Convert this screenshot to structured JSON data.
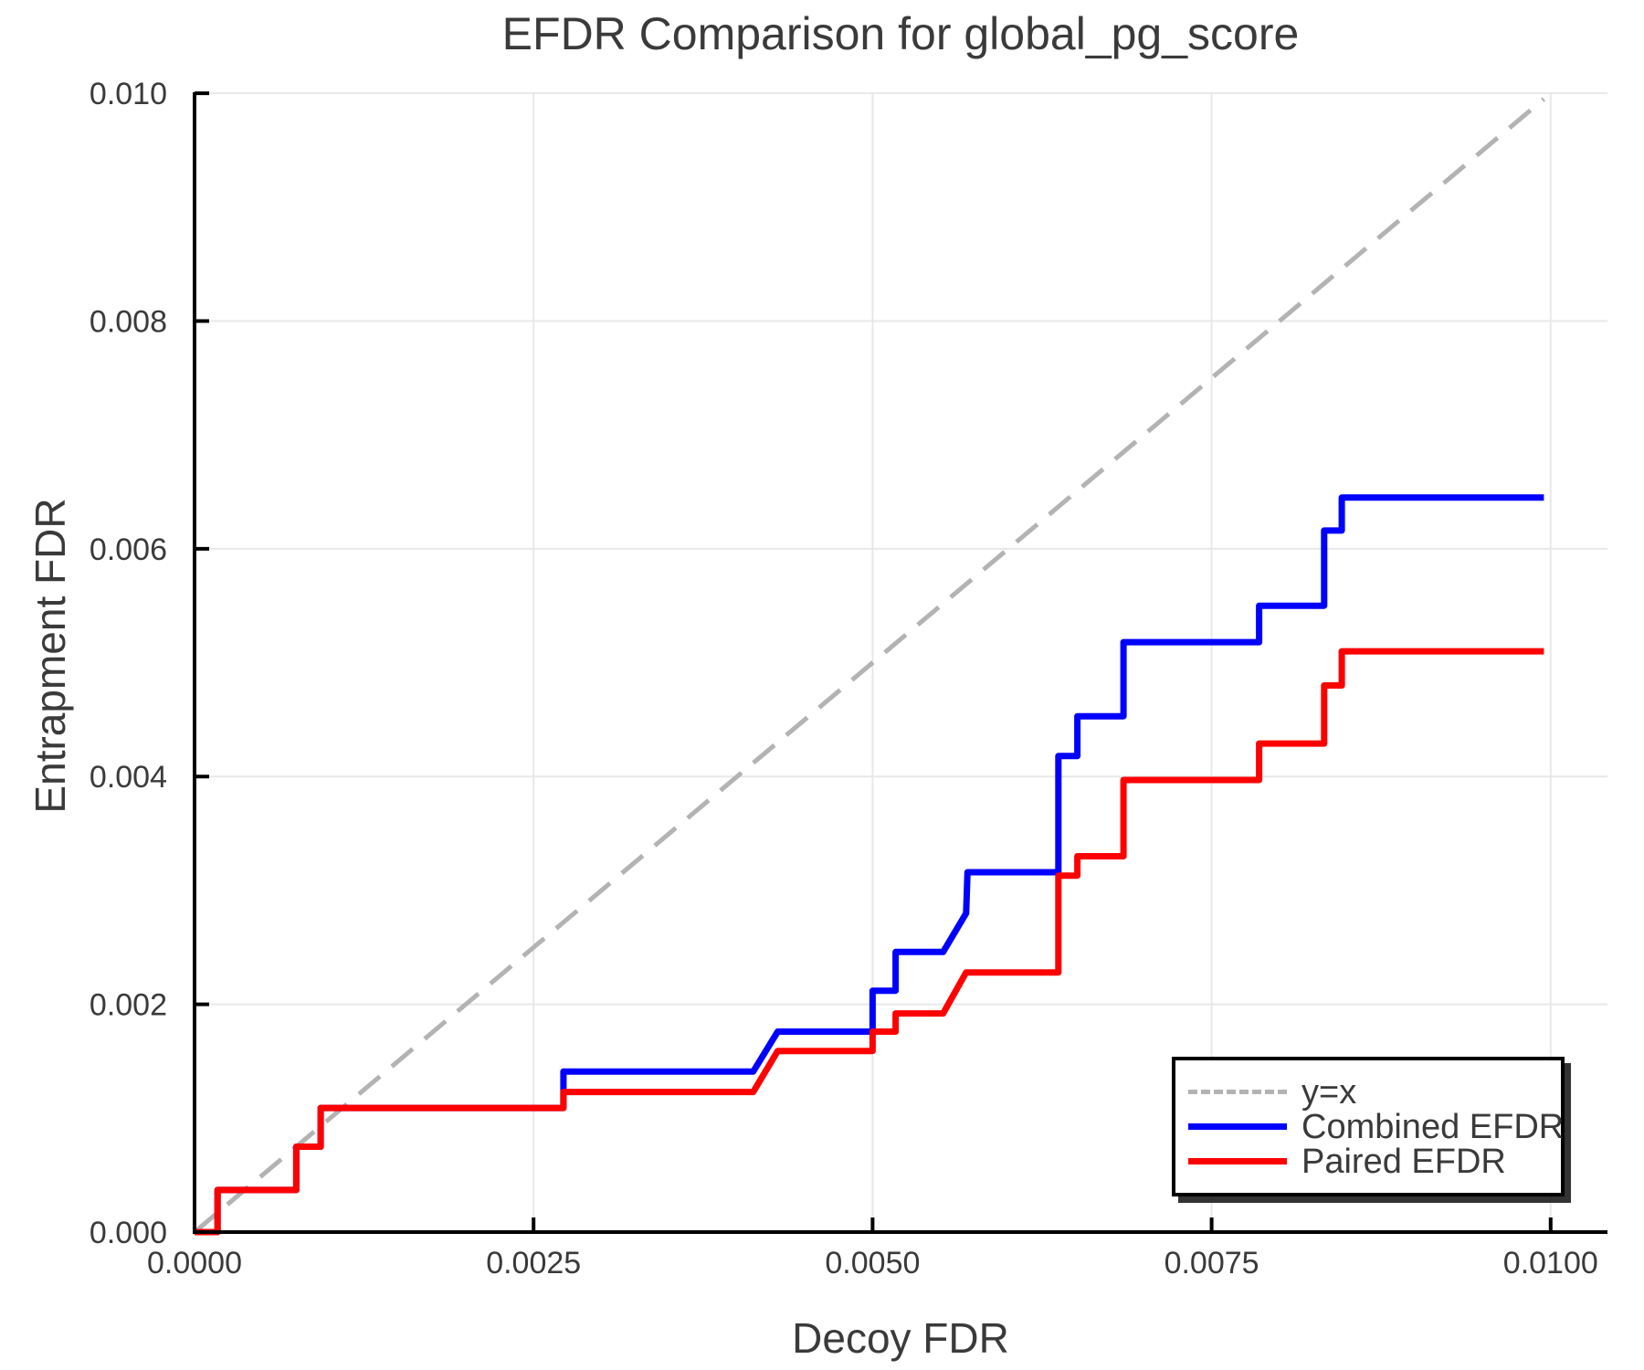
{
  "chart_data": {
    "type": "line",
    "title": "EFDR Comparison for global_pg_score",
    "xlabel": "Decoy FDR",
    "ylabel": "Entrapment FDR",
    "xlim": [
      0,
      0.010419
    ],
    "ylim": [
      0,
      0.010009
    ],
    "xticks": [
      0.0,
      0.0025,
      0.005,
      0.0075,
      0.01
    ],
    "xtick_labels": [
      "0.0000",
      "0.0025",
      "0.0050",
      "0.0075",
      "0.0100"
    ],
    "yticks": [
      0.0,
      0.002,
      0.004,
      0.006,
      0.008,
      0.01
    ],
    "ytick_labels": [
      "0.000",
      "0.002",
      "0.004",
      "0.006",
      "0.008",
      "0.010"
    ],
    "grid": true,
    "legend_position": "lower right",
    "background_color": "#ffffff",
    "text_color": "#3a3a3a",
    "grid_color": "#e8e8e8",
    "spine_color": "#000000",
    "series": [
      {
        "name": "y=x",
        "color": "#b3b3b3",
        "style": "dashed",
        "points": [
          [
            0,
            0
          ],
          [
            0.00995,
            0.00995
          ]
        ]
      },
      {
        "name": "Combined EFDR",
        "color": "#0000ff",
        "style": "solid",
        "points": [
          [
            0.0,
            0.0
          ],
          [
            0.00017,
            0.0
          ],
          [
            0.00017,
            0.00037
          ],
          [
            0.00075,
            0.00037
          ],
          [
            0.00075,
            0.00075
          ],
          [
            0.00093,
            0.00075
          ],
          [
            0.00093,
            0.00109
          ],
          [
            0.00272,
            0.00109
          ],
          [
            0.00272,
            0.00141
          ],
          [
            0.00412,
            0.00141
          ],
          [
            0.0043,
            0.00176
          ],
          [
            0.005,
            0.00176
          ],
          [
            0.005,
            0.00212
          ],
          [
            0.00517,
            0.00212
          ],
          [
            0.00517,
            0.00246
          ],
          [
            0.00552,
            0.00246
          ],
          [
            0.00569,
            0.0028
          ],
          [
            0.0057,
            0.00316
          ],
          [
            0.00637,
            0.00316
          ],
          [
            0.00637,
            0.00418
          ],
          [
            0.00651,
            0.00418
          ],
          [
            0.00651,
            0.00453
          ],
          [
            0.00685,
            0.00453
          ],
          [
            0.00685,
            0.00518
          ],
          [
            0.00785,
            0.00518
          ],
          [
            0.00785,
            0.0055
          ],
          [
            0.00833,
            0.0055
          ],
          [
            0.00833,
            0.00616
          ],
          [
            0.00846,
            0.00616
          ],
          [
            0.00846,
            0.00645
          ],
          [
            0.00995,
            0.00645
          ]
        ]
      },
      {
        "name": "Paired EFDR",
        "color": "#ff0000",
        "style": "solid",
        "points": [
          [
            0.0,
            0.0
          ],
          [
            0.00017,
            0.0
          ],
          [
            0.00017,
            0.00037
          ],
          [
            0.00075,
            0.00037
          ],
          [
            0.00075,
            0.00075
          ],
          [
            0.00093,
            0.00075
          ],
          [
            0.00093,
            0.00109
          ],
          [
            0.00272,
            0.00109
          ],
          [
            0.00272,
            0.00123
          ],
          [
            0.00412,
            0.00123
          ],
          [
            0.0043,
            0.00159
          ],
          [
            0.005,
            0.00159
          ],
          [
            0.005,
            0.00176
          ],
          [
            0.00517,
            0.00176
          ],
          [
            0.00517,
            0.00192
          ],
          [
            0.00552,
            0.00192
          ],
          [
            0.00569,
            0.00228
          ],
          [
            0.00637,
            0.00228
          ],
          [
            0.00637,
            0.00313
          ],
          [
            0.00651,
            0.00313
          ],
          [
            0.00651,
            0.0033
          ],
          [
            0.00685,
            0.0033
          ],
          [
            0.00685,
            0.00397
          ],
          [
            0.00785,
            0.00397
          ],
          [
            0.00785,
            0.00429
          ],
          [
            0.00833,
            0.00429
          ],
          [
            0.00833,
            0.0048
          ],
          [
            0.00846,
            0.0048
          ],
          [
            0.00846,
            0.0051
          ],
          [
            0.00995,
            0.0051
          ]
        ]
      }
    ]
  }
}
